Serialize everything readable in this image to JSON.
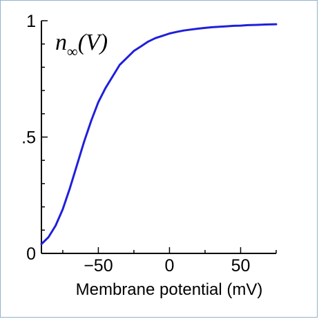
{
  "chart_data": {
    "type": "line",
    "title": "n∞(V)",
    "title_parts": {
      "base": "n",
      "subscript": "∞",
      "argument": "(V)"
    },
    "xlabel": "Membrane potential (mV)",
    "ylabel": "",
    "xlim": [
      -90,
      75
    ],
    "ylim": [
      0,
      1
    ],
    "x_ticks": [
      -50,
      0,
      50
    ],
    "x_tick_labels": [
      "−50",
      "0",
      "50"
    ],
    "y_ticks": [
      0,
      0.5,
      1
    ],
    "y_tick_labels": [
      "0",
      ".5",
      "1"
    ],
    "grid": false,
    "legend": "none",
    "series": [
      {
        "color": "#1f1fdc",
        "x": [
          -90,
          -85,
          -80,
          -75,
          -70,
          -65,
          -60,
          -55,
          -50,
          -45,
          -40,
          -35,
          -30,
          -25,
          -20,
          -15,
          -10,
          -5,
          0,
          5,
          10,
          15,
          20,
          25,
          30,
          35,
          40,
          45,
          50,
          55,
          60,
          65,
          70,
          75
        ],
        "y": [
          0.04,
          0.07,
          0.12,
          0.19,
          0.28,
          0.38,
          0.48,
          0.57,
          0.65,
          0.71,
          0.76,
          0.81,
          0.84,
          0.87,
          0.89,
          0.91,
          0.925,
          0.935,
          0.945,
          0.952,
          0.958,
          0.962,
          0.966,
          0.969,
          0.972,
          0.974,
          0.976,
          0.978,
          0.979,
          0.981,
          0.982,
          0.983,
          0.984,
          0.985
        ]
      }
    ]
  }
}
